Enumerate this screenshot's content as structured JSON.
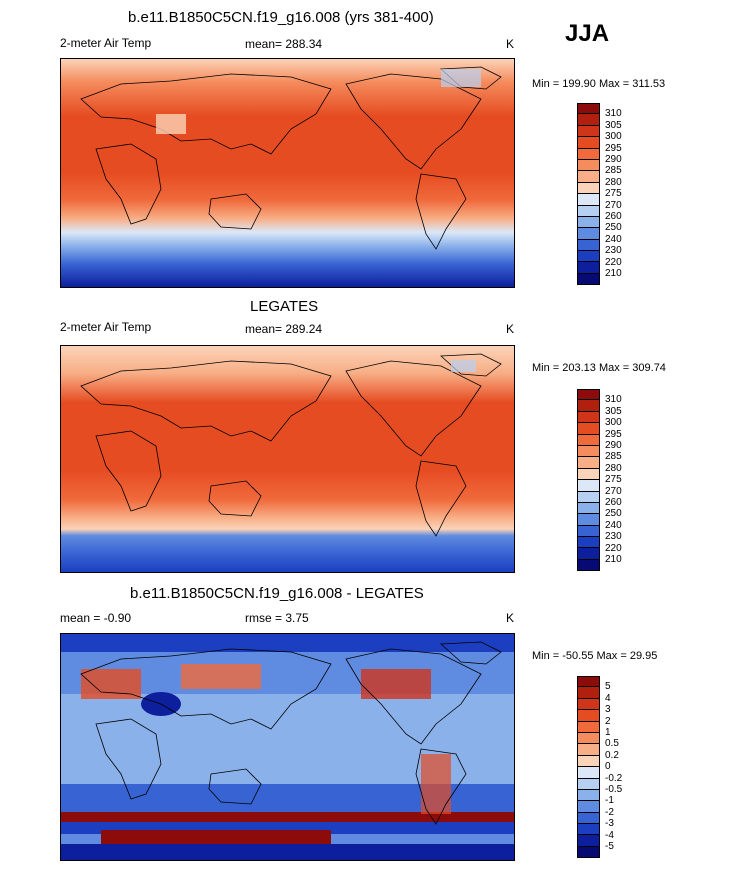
{
  "season": "JJA",
  "panels": [
    {
      "title": "b.e11.B1850C5CN.f19_g16.008 (yrs 381-400)",
      "left_label": "2-meter Air Temp",
      "center_label": "mean= 288.34",
      "units": "K",
      "minmax": "Min = 199.90 Max = 311.53",
      "colorbar_labels": [
        "310",
        "305",
        "300",
        "295",
        "290",
        "285",
        "280",
        "275",
        "270",
        "260",
        "250",
        "240",
        "230",
        "220",
        "210"
      ],
      "colors": [
        "#8c0c0c",
        "#b1200f",
        "#d0351a",
        "#e64c22",
        "#f06a3c",
        "#f58c5e",
        "#f8ae86",
        "#fbd3b8",
        "#dce8f8",
        "#b6d0f2",
        "#8bb1ea",
        "#5f8be0",
        "#3863d3",
        "#1b3fc0",
        "#0d1f9c",
        "#060a72"
      ]
    },
    {
      "title": "LEGATES",
      "left_label": "2-meter Air Temp",
      "center_label": "mean= 289.24",
      "units": "K",
      "minmax": "Min = 203.13 Max = 309.74",
      "colorbar_labels": [
        "310",
        "305",
        "300",
        "295",
        "290",
        "285",
        "280",
        "275",
        "270",
        "260",
        "250",
        "240",
        "230",
        "220",
        "210"
      ],
      "colors": [
        "#8c0c0c",
        "#b1200f",
        "#d0351a",
        "#e64c22",
        "#f06a3c",
        "#f58c5e",
        "#f8ae86",
        "#fbd3b8",
        "#dce8f8",
        "#b6d0f2",
        "#8bb1ea",
        "#5f8be0",
        "#3863d3",
        "#1b3fc0",
        "#0d1f9c",
        "#060a72"
      ]
    },
    {
      "title": "b.e11.B1850C5CN.f19_g16.008 - LEGATES",
      "left_label": "mean =  -0.90",
      "center_label": "rmse =   3.75",
      "units": "K",
      "minmax": "Min = -50.55 Max =  29.95",
      "colorbar_labels": [
        "5",
        "4",
        "3",
        "2",
        "1",
        "0.5",
        "0.2",
        "0",
        "-0.2",
        "-0.5",
        "-1",
        "-2",
        "-3",
        "-4",
        "-5"
      ],
      "colors": [
        "#8c0c0c",
        "#b1200f",
        "#d0351a",
        "#e64c22",
        "#f06a3c",
        "#f58c5e",
        "#f8ae86",
        "#fbd3b8",
        "#dce8f8",
        "#b6d0f2",
        "#8bb1ea",
        "#5f8be0",
        "#3863d3",
        "#1b3fc0",
        "#0d1f9c",
        "#060a72"
      ]
    }
  ],
  "chart_data": [
    {
      "type": "heatmap",
      "title": "b.e11.B1850C5CN.f19_g16.008 (yrs 381-400)",
      "variable": "2-meter Air Temp",
      "units": "K",
      "mean": 288.34,
      "min": 199.9,
      "max": 311.53,
      "contour_levels": [
        210,
        220,
        230,
        240,
        250,
        260,
        270,
        275,
        280,
        285,
        290,
        295,
        300,
        305,
        310
      ]
    },
    {
      "type": "heatmap",
      "title": "LEGATES",
      "variable": "2-meter Air Temp",
      "units": "K",
      "mean": 289.24,
      "min": 203.13,
      "max": 309.74,
      "contour_levels": [
        210,
        220,
        230,
        240,
        250,
        260,
        270,
        275,
        280,
        285,
        290,
        295,
        300,
        305,
        310
      ]
    },
    {
      "type": "heatmap",
      "title": "b.e11.B1850C5CN.f19_g16.008 - LEGATES",
      "units": "K",
      "mean": -0.9,
      "rmse": 3.75,
      "min": -50.55,
      "max": 29.95,
      "contour_levels": [
        -5,
        -4,
        -3,
        -2,
        -1,
        -0.5,
        -0.2,
        0,
        0.2,
        0.5,
        1,
        2,
        3,
        4,
        5
      ]
    }
  ]
}
